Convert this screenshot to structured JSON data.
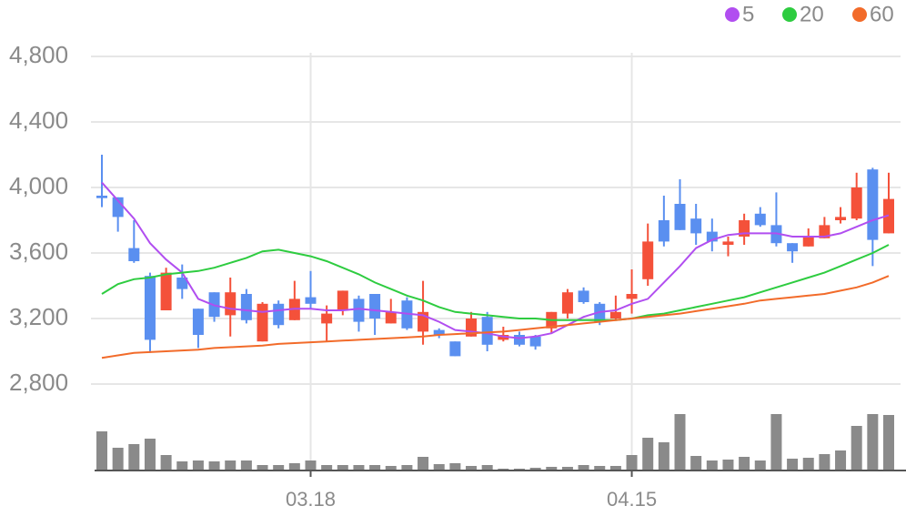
{
  "chart_data": {
    "type": "candlestick",
    "categories": [
      null,
      null,
      null,
      null,
      null,
      null,
      null,
      null,
      null,
      null,
      null,
      null,
      null,
      "03.18",
      null,
      null,
      null,
      null,
      null,
      null,
      null,
      null,
      null,
      null,
      null,
      null,
      null,
      null,
      null,
      null,
      null,
      null,
      null,
      "04.15",
      null,
      null,
      null,
      null,
      null,
      null,
      null,
      null,
      null,
      null,
      null,
      null,
      null,
      null,
      null,
      null
    ],
    "open": [
      3950,
      3940,
      3630,
      3460,
      3250,
      3450,
      3260,
      3360,
      3220,
      3350,
      3060,
      3290,
      3190,
      3330,
      3170,
      3250,
      3320,
      3350,
      3170,
      3310,
      3120,
      3130,
      3060,
      3090,
      3210,
      3070,
      3100,
      3090,
      3140,
      3230,
      3370,
      3290,
      3200,
      3320,
      3440,
      3800,
      3900,
      3810,
      3730,
      3650,
      3700,
      3840,
      3770,
      3660,
      3640,
      3690,
      3800,
      3810,
      4110,
      3720
    ],
    "high": [
      4200,
      3940,
      3800,
      3480,
      3510,
      3530,
      3260,
      3360,
      3450,
      3380,
      3300,
      3310,
      3430,
      3490,
      3280,
      3370,
      3340,
      3350,
      3320,
      3330,
      3430,
      3140,
      3060,
      3240,
      3240,
      3150,
      3120,
      3100,
      3240,
      3380,
      3390,
      3300,
      3340,
      3500,
      3780,
      3950,
      4050,
      3900,
      3810,
      3700,
      3840,
      3880,
      3970,
      3660,
      3750,
      3820,
      3880,
      4090,
      4120,
      4090
    ],
    "low": [
      3880,
      3730,
      3540,
      2990,
      3250,
      3320,
      3020,
      3180,
      3090,
      3170,
      3060,
      3140,
      3190,
      3260,
      3060,
      3220,
      3120,
      3100,
      3170,
      3130,
      3040,
      3080,
      2970,
      3090,
      3000,
      3060,
      3030,
      3010,
      3110,
      3200,
      3290,
      3160,
      3190,
      3230,
      3400,
      3640,
      3740,
      3650,
      3610,
      3580,
      3650,
      3760,
      3640,
      3540,
      3640,
      3690,
      3780,
      3800,
      3520,
      3720
    ],
    "close": [
      3935,
      3820,
      3550,
      3070,
      3480,
      3380,
      3100,
      3210,
      3360,
      3190,
      3290,
      3160,
      3320,
      3290,
      3230,
      3370,
      3180,
      3200,
      3240,
      3140,
      3240,
      3100,
      2970,
      3200,
      3040,
      3100,
      3040,
      3030,
      3240,
      3360,
      3300,
      3180,
      3240,
      3350,
      3670,
      3670,
      3740,
      3720,
      3670,
      3670,
      3800,
      3770,
      3660,
      3610,
      3700,
      3770,
      3820,
      4000,
      3680,
      3930
    ],
    "up_color": "#f4513a",
    "down_color": "#5a8ff0",
    "series": [
      {
        "name": "5",
        "color": "#b14ef0",
        "values": [
          4030,
          3920,
          3810,
          3660,
          3560,
          3480,
          3320,
          3280,
          3260,
          3250,
          3240,
          3250,
          3260,
          3260,
          3250,
          3250,
          3260,
          3250,
          3240,
          3230,
          3220,
          3180,
          3130,
          3120,
          3110,
          3090,
          3080,
          3090,
          3110,
          3160,
          3210,
          3240,
          3250,
          3290,
          3320,
          3420,
          3520,
          3630,
          3680,
          3710,
          3720,
          3720,
          3720,
          3700,
          3700,
          3700,
          3720,
          3760,
          3800,
          3830
        ]
      },
      {
        "name": "20",
        "color": "#2ecc40",
        "values": [
          3350,
          3410,
          3440,
          3450,
          3470,
          3480,
          3490,
          3510,
          3540,
          3570,
          3610,
          3620,
          3600,
          3580,
          3550,
          3510,
          3470,
          3420,
          3380,
          3340,
          3310,
          3270,
          3240,
          3230,
          3220,
          3210,
          3200,
          3200,
          3190,
          3190,
          3190,
          3190,
          3190,
          3200,
          3220,
          3230,
          3250,
          3270,
          3290,
          3310,
          3330,
          3360,
          3390,
          3420,
          3450,
          3480,
          3520,
          3560,
          3600,
          3650
        ]
      },
      {
        "name": "60",
        "color": "#f26b2a",
        "values": [
          2960,
          2975,
          2990,
          2995,
          3000,
          3005,
          3010,
          3020,
          3025,
          3030,
          3035,
          3045,
          3050,
          3055,
          3060,
          3065,
          3070,
          3075,
          3080,
          3085,
          3090,
          3100,
          3105,
          3110,
          3115,
          3120,
          3130,
          3140,
          3150,
          3160,
          3170,
          3180,
          3190,
          3200,
          3210,
          3220,
          3230,
          3245,
          3260,
          3275,
          3290,
          3310,
          3320,
          3330,
          3340,
          3350,
          3370,
          3390,
          3420,
          3460
        ]
      }
    ],
    "volume": {
      "color": "#8a8a8a",
      "ylim": [
        0,
        62
      ],
      "values": [
        43,
        25,
        29,
        35,
        17,
        10,
        11,
        10,
        11,
        11,
        6,
        6,
        8,
        11,
        6,
        6,
        6,
        6,
        5,
        6,
        15,
        7,
        8,
        5,
        6,
        2,
        2,
        3,
        4,
        4,
        6,
        5,
        5,
        17,
        36,
        31,
        62,
        16,
        11,
        12,
        15,
        11,
        62,
        13,
        14,
        18,
        22,
        49,
        62,
        61
      ]
    },
    "ylim": [
      2600,
      4900
    ],
    "yticks": [
      {
        "value": 2800,
        "label": "2,800"
      },
      {
        "value": 3200,
        "label": "3,200"
      },
      {
        "value": 3600,
        "label": "3,600"
      },
      {
        "value": 4000,
        "label": "4,000"
      },
      {
        "value": 4400,
        "label": "4,400"
      },
      {
        "value": 4800,
        "label": "4,800"
      }
    ],
    "grid": true
  }
}
